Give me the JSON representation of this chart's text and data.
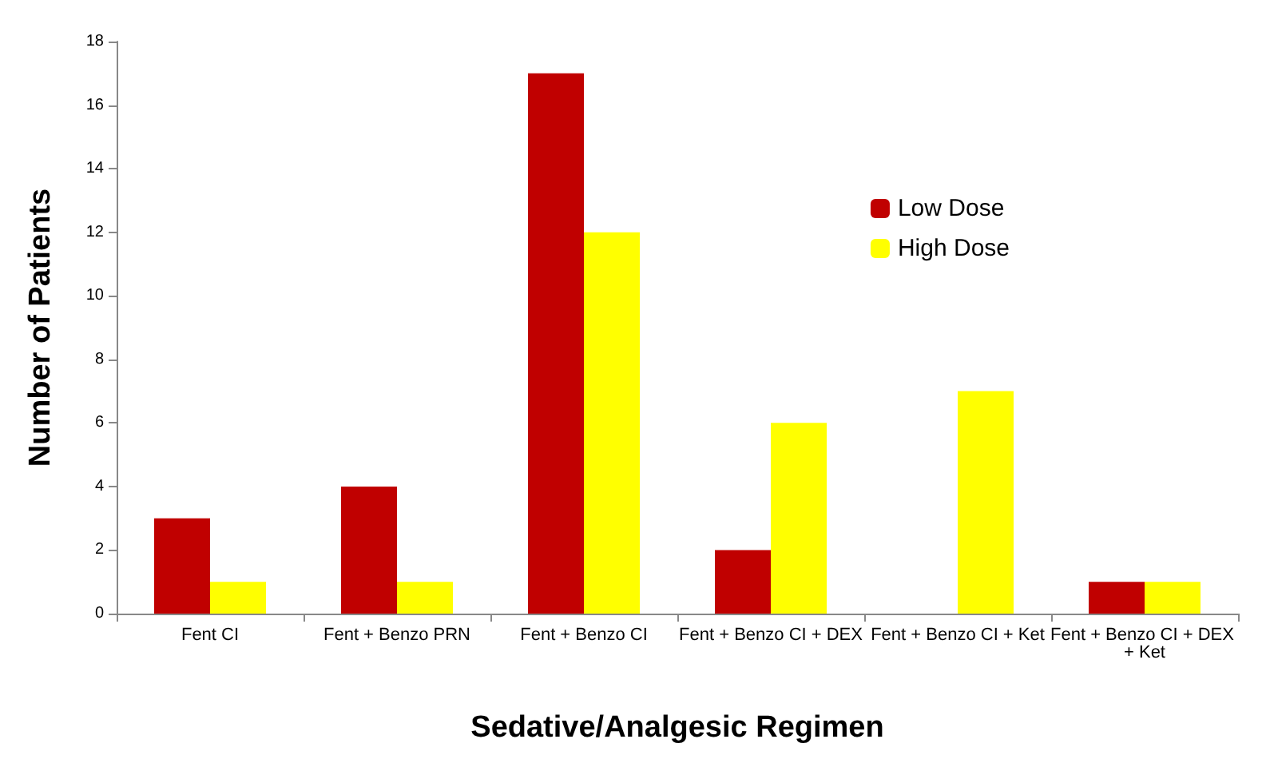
{
  "chart_data": {
    "type": "bar",
    "xlabel": "Sedative/Analgesic Regimen",
    "ylabel": "Number of Patients",
    "categories": [
      "Fent CI",
      "Fent + Benzo PRN",
      "Fent + Benzo CI",
      "Fent + Benzo CI + DEX",
      "Fent + Benzo CI + Ket",
      "Fent + Benzo CI + DEX + Ket"
    ],
    "series": [
      {
        "name": "Low Dose",
        "color": "#c00000",
        "values": [
          3,
          4,
          17,
          2,
          0,
          1
        ]
      },
      {
        "name": "High Dose",
        "color": "#ffff00",
        "values": [
          1,
          1,
          12,
          6,
          7,
          1
        ]
      }
    ],
    "ylim": [
      0,
      18
    ],
    "yticks": [
      0,
      2,
      4,
      6,
      8,
      10,
      12,
      14,
      16,
      18
    ],
    "grid": false,
    "legend": "top right"
  }
}
